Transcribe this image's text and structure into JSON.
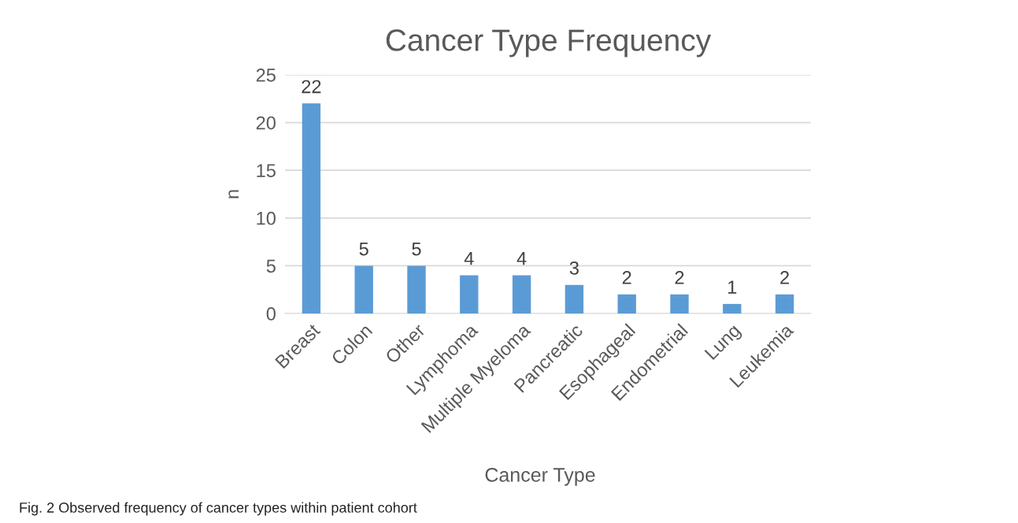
{
  "chart_data": {
    "type": "bar",
    "title": "Cancer Type Frequency",
    "xlabel": "Cancer Type",
    "ylabel": "n",
    "categories": [
      "Breast",
      "Colon",
      "Other",
      "Lymphoma",
      "Multiple Myeloma",
      "Pancreatic",
      "Esophageal",
      "Endometrial",
      "Lung",
      "Leukemia"
    ],
    "values": [
      22,
      5,
      5,
      4,
      4,
      3,
      2,
      2,
      1,
      2
    ],
    "color": "#5b9bd5",
    "ylim": [
      0,
      25
    ],
    "yticks": [
      0,
      5,
      10,
      15,
      20,
      25
    ],
    "grid": "y",
    "data_labels": true,
    "annotations": [
      "Fig. 2 Observed frequency of cancer types within patient cohort"
    ]
  }
}
